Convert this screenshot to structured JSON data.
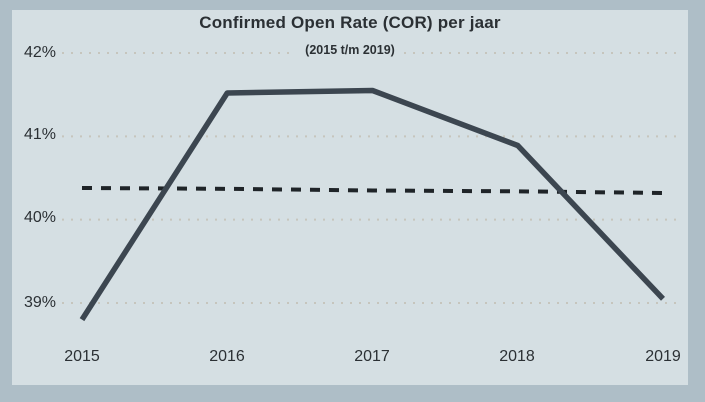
{
  "page": {
    "background_color": "#aebec7",
    "panel_color": "#d5dfe3",
    "text_color": "#2b3034"
  },
  "chart_data": {
    "type": "line",
    "title": "Confirmed Open Rate (COR) per jaar",
    "subtitle": "(2015 t/m 2019)",
    "categories": [
      "2015",
      "2016",
      "2017",
      "2018",
      "2019"
    ],
    "series": [
      {
        "name": "confirmed-open-rate",
        "style": "solid",
        "color": "#3c4650",
        "values": [
          38.8,
          41.52,
          41.55,
          40.89,
          39.05
        ]
      },
      {
        "name": "trendline",
        "style": "dashed",
        "color": "#1f2428",
        "values": [
          40.38,
          40.37,
          40.35,
          40.34,
          40.32
        ]
      }
    ],
    "yticks": {
      "labels": [
        "42%",
        "41%",
        "40%",
        "39%"
      ],
      "values": [
        42,
        41,
        40,
        39
      ]
    },
    "ylim": [
      38.55,
      42.35
    ],
    "xlabel": "",
    "ylabel": "",
    "grid": "dotted-horizontal",
    "gridline_color": "#c6c5bd",
    "legend": "none"
  }
}
